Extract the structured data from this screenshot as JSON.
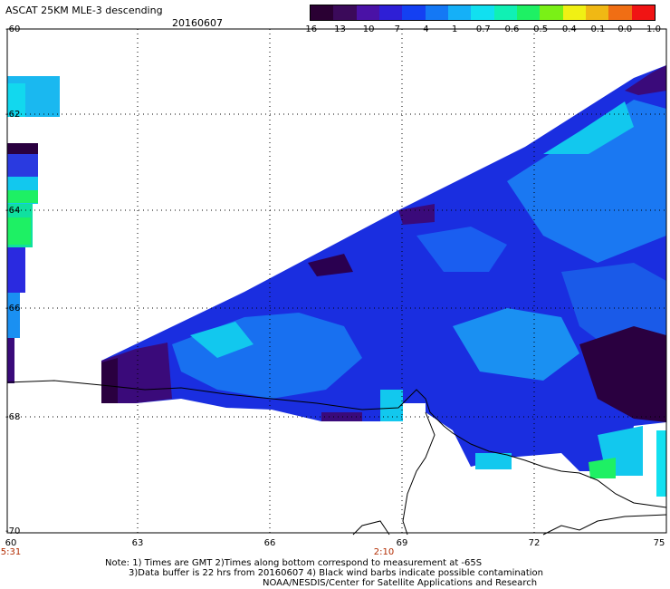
{
  "title": "ASCAT 25KM MLE-3 descending",
  "date": "20160607",
  "colorbar": {
    "labels": [
      "-16",
      "-13",
      "-10",
      "-7",
      "-4",
      "-1",
      "-0.7",
      "-0.6",
      "-0.5",
      "-0.4",
      "-0.1",
      "0.0",
      "1.0"
    ],
    "colors": [
      "#2a0033",
      "#3b0a5a",
      "#4a12a6",
      "#2e1fd6",
      "#1440f2",
      "#1478f5",
      "#15b0f7",
      "#11e0f0",
      "#10f0b4",
      "#1ef064",
      "#7af016",
      "#f0f014",
      "#f0b814",
      "#f06e14",
      "#f01414"
    ]
  },
  "axes": {
    "lat_labels": [
      "-60",
      "-62",
      "-64",
      "-66",
      "-68",
      "-70"
    ],
    "lon_labels": [
      "60",
      "63",
      "66",
      "69",
      "72",
      "75"
    ],
    "time_labels": [
      "5:31",
      "2:10"
    ]
  },
  "notes": {
    "line1": "Note: 1) Times are GMT 2)Times along bottom correspond to measurement at -65S",
    "line2": "3)Data buffer is 22 hrs from 20160607 4) Black wind barbs indicate possible contamination",
    "line3": "NOAA/NESDIS/Center for Satellite Applications and Research"
  }
}
